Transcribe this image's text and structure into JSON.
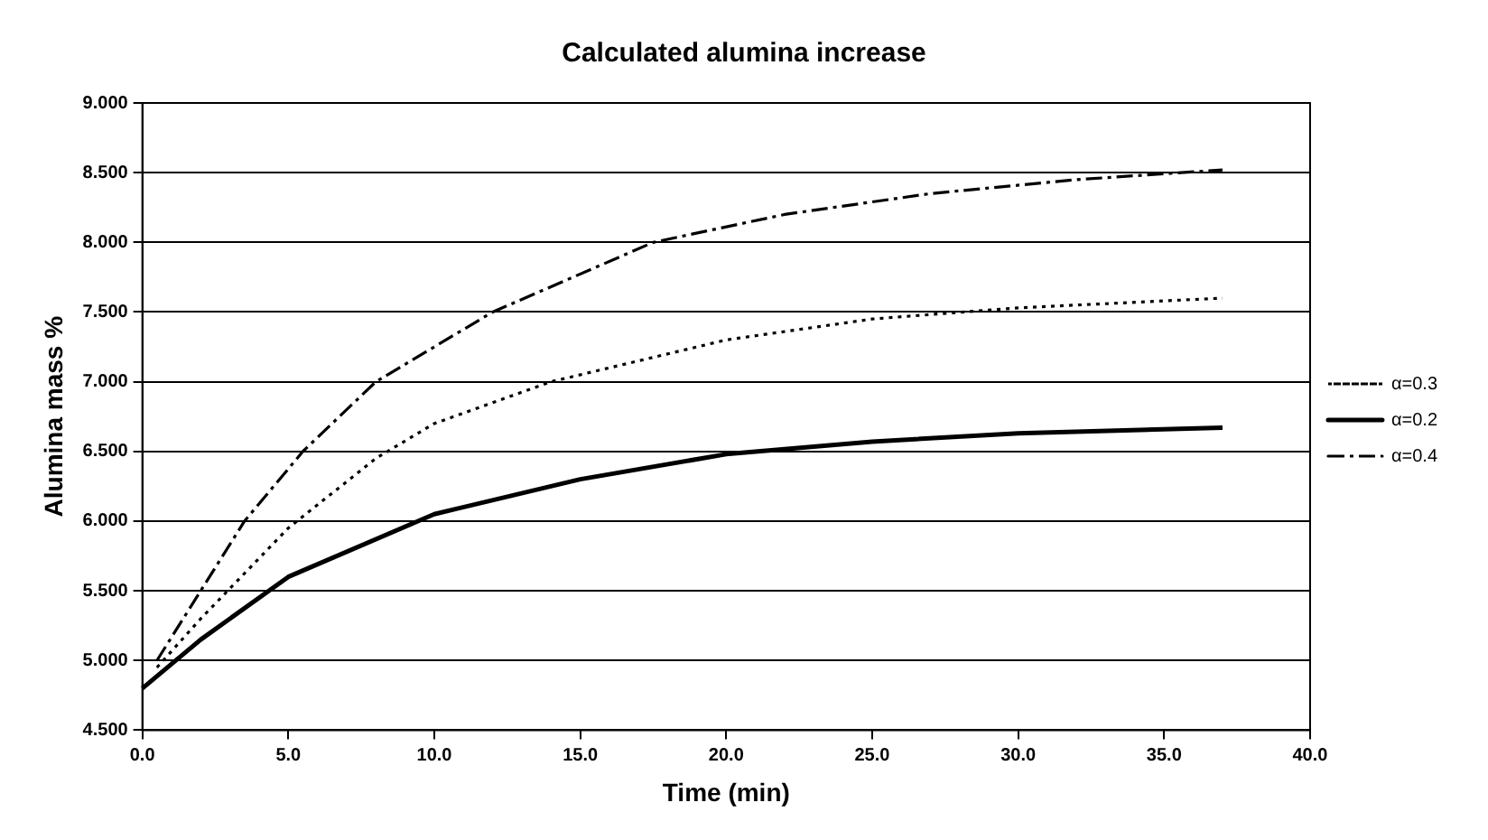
{
  "chart_data": {
    "type": "line",
    "title": "Calculated alumina increase",
    "xlabel": "Time (min)",
    "ylabel": "Alumina mass %",
    "xlim": [
      0,
      40
    ],
    "xticks": [
      {
        "value": 0,
        "label": "0.0"
      },
      {
        "value": 5,
        "label": "5.0"
      },
      {
        "value": 10,
        "label": "10.0"
      },
      {
        "value": 15,
        "label": "15.0"
      },
      {
        "value": 20,
        "label": "20.0"
      },
      {
        "value": 25,
        "label": "25.0"
      },
      {
        "value": 30,
        "label": "30.0"
      },
      {
        "value": 35,
        "label": "35.0"
      },
      {
        "value": 40,
        "label": "40.0"
      }
    ],
    "ylim": [
      4.5,
      9
    ],
    "yticks": [
      {
        "value": 4.5,
        "label": "4.500"
      },
      {
        "value": 5,
        "label": "5.000"
      },
      {
        "value": 5.5,
        "label": "5.500"
      },
      {
        "value": 6,
        "label": "6.000"
      },
      {
        "value": 6.5,
        "label": "6.500"
      },
      {
        "value": 7,
        "label": "7.000"
      },
      {
        "value": 7.5,
        "label": "7.500"
      },
      {
        "value": 8,
        "label": "8.000"
      },
      {
        "value": 8.5,
        "label": "8.500"
      },
      {
        "value": 9,
        "label": "9.000"
      }
    ],
    "grid": "y",
    "legend": "right",
    "marker": "none",
    "series": [
      {
        "name": "α=0.3",
        "color": "#000000",
        "line_style": "dotted",
        "x": [
          0.5,
          2,
          5,
          8,
          10,
          14,
          20,
          25,
          30,
          37
        ],
        "values": [
          4.95,
          5.3,
          5.95,
          6.45,
          6.7,
          7.0,
          7.3,
          7.45,
          7.53,
          7.6
        ]
      },
      {
        "name": "α=0.2",
        "color": "#000000",
        "line_style": "solid",
        "x": [
          0,
          2,
          5,
          10,
          15,
          20,
          25,
          30,
          37
        ],
        "values": [
          4.8,
          5.15,
          5.6,
          6.05,
          6.3,
          6.48,
          6.57,
          6.63,
          6.67
        ]
      },
      {
        "name": "α=0.4",
        "color": "#000000",
        "line_style": "dashed",
        "x": [
          0.5,
          2,
          3.5,
          5.5,
          8,
          12,
          17.5,
          22,
          27,
          32,
          37
        ],
        "values": [
          5.0,
          5.5,
          6.0,
          6.5,
          7.0,
          7.5,
          8.0,
          8.2,
          8.35,
          8.45,
          8.52
        ]
      }
    ]
  }
}
